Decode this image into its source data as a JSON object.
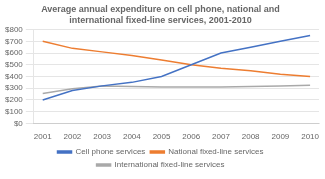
{
  "chart_data": {
    "type": "line",
    "title": "Average annual expenditure on cell phone, national and\ninternational fixed-line services, 2001-2010",
    "x": [
      2001,
      2002,
      2003,
      2004,
      2005,
      2006,
      2007,
      2008,
      2009,
      2010
    ],
    "series": [
      {
        "name": "Cell phone services",
        "color": "#4472C4",
        "values": [
          200,
          280,
          320,
          350,
          400,
          500,
          600,
          650,
          700,
          750
        ]
      },
      {
        "name": "National fixed-line services",
        "color": "#ED7D31",
        "values": [
          700,
          640,
          610,
          580,
          540,
          500,
          470,
          450,
          420,
          400
        ]
      },
      {
        "name": "International fixed-line services",
        "color": "#A9A9A9",
        "values": [
          255,
          295,
          320,
          315,
          310,
          310,
          310,
          315,
          320,
          325
        ]
      }
    ],
    "xlim": [
      2000.7,
      2010.3
    ],
    "xticks": [
      2001,
      2002,
      2003,
      2004,
      2005,
      2006,
      2007,
      2008,
      2009,
      2010
    ],
    "ylim": [
      0,
      800
    ],
    "yticks": [
      {
        "value": 0,
        "label": "$0"
      },
      {
        "value": 100,
        "label": "$100"
      },
      {
        "value": 200,
        "label": "$200"
      },
      {
        "value": 300,
        "label": "$300"
      },
      {
        "value": 400,
        "label": "$400"
      },
      {
        "value": 500,
        "label": "$500"
      },
      {
        "value": 600,
        "label": "$600"
      },
      {
        "value": 700,
        "label": "$700"
      },
      {
        "value": 800,
        "label": "$800"
      }
    ],
    "grid": "y",
    "legend": "bottom"
  }
}
